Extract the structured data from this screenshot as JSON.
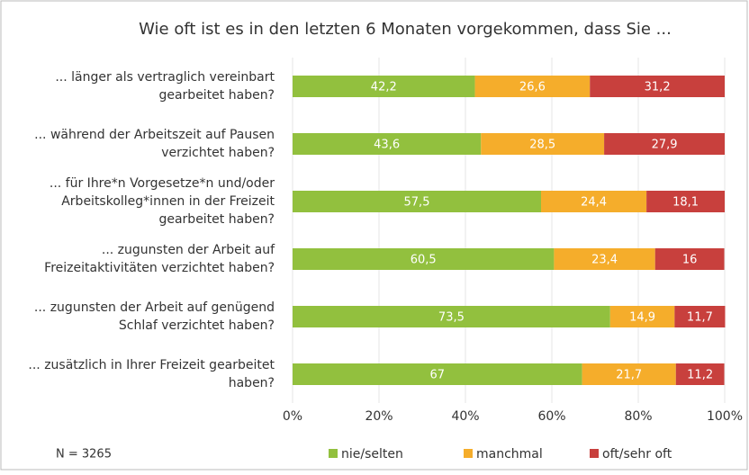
{
  "chart_data": {
    "type": "stacked_bar_horizontal",
    "title": "Wie oft ist es in den letzten 6 Monaten vorgekommen, dass Sie ...",
    "categories": [
      [
        "... länger als vertraglich vereinbart",
        "gearbeitet haben?"
      ],
      [
        "... während der Arbeitszeit auf Pausen",
        "verzichtet haben?"
      ],
      [
        "... für Ihre*n Vorgesetze*n und/oder",
        "Arbeitskolleg*innen in der Freizeit",
        "gearbeitet  haben?"
      ],
      [
        "... zugunsten der Arbeit auf",
        "Freizeitaktivitäten verzichtet haben?"
      ],
      [
        "... zugunsten der Arbeit auf genügend",
        "Schlaf verzichtet haben?"
      ],
      [
        "... zusätzlich in Ihrer Freizeit gearbeitet",
        "haben?"
      ]
    ],
    "series": [
      {
        "name": "nie/selten",
        "color": "#92c03e",
        "values": [
          42.2,
          43.6,
          57.5,
          60.5,
          73.5,
          67
        ],
        "value_labels": [
          "42,2",
          "43,6",
          "57,5",
          "60,5",
          "73,5",
          "67"
        ]
      },
      {
        "name": "manchmal",
        "color": "#f5ad2b",
        "values": [
          26.6,
          28.5,
          24.4,
          23.4,
          14.9,
          21.7
        ],
        "value_labels": [
          "26,6",
          "28,5",
          "24,4",
          "23,4",
          "14,9",
          "21,7"
        ]
      },
      {
        "name": "oft/sehr oft",
        "color": "#c8403d",
        "values": [
          31.2,
          27.9,
          18.1,
          16,
          11.7,
          11.2
        ],
        "value_labels": [
          "31,2",
          "27,9",
          "18,1",
          "16",
          "11,7",
          "11,2"
        ]
      }
    ],
    "xlim": [
      0,
      100
    ],
    "xticks": [
      {
        "value": 0,
        "label": "0%"
      },
      {
        "value": 20,
        "label": "20%"
      },
      {
        "value": 40,
        "label": "40%"
      },
      {
        "value": 60,
        "label": "60%"
      },
      {
        "value": 80,
        "label": "80%"
      },
      {
        "value": 100,
        "label": "100%"
      }
    ],
    "grid": true,
    "legend": "bottom",
    "annotation": "N = 3265"
  }
}
